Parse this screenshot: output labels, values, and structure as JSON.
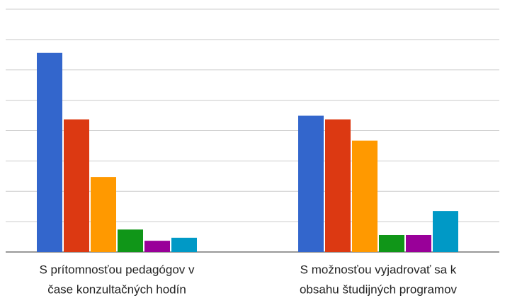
{
  "chart_data": {
    "type": "bar",
    "categories": [
      [
        "S prítomnosťou pedagógov v",
        "čase konzultačných hodín"
      ],
      [
        "S možnosťou vyjadrovať sa k",
        "obsahu študijných programov"
      ]
    ],
    "series": [
      {
        "color": "#3366cc",
        "values": [
          6.56,
          4.49
        ]
      },
      {
        "color": "#dc3912",
        "values": [
          4.37,
          4.37
        ]
      },
      {
        "color": "#ff9900",
        "values": [
          2.47,
          3.67
        ]
      },
      {
        "color": "#109618",
        "values": [
          0.74,
          0.56
        ]
      },
      {
        "color": "#990099",
        "values": [
          0.37,
          0.56
        ]
      },
      {
        "color": "#0099c6",
        "values": [
          0.47,
          1.35
        ]
      }
    ],
    "ylim": [
      0,
      8
    ],
    "yticks": [
      0,
      1,
      2,
      3,
      4,
      5,
      6,
      7,
      8
    ],
    "grid": true
  }
}
